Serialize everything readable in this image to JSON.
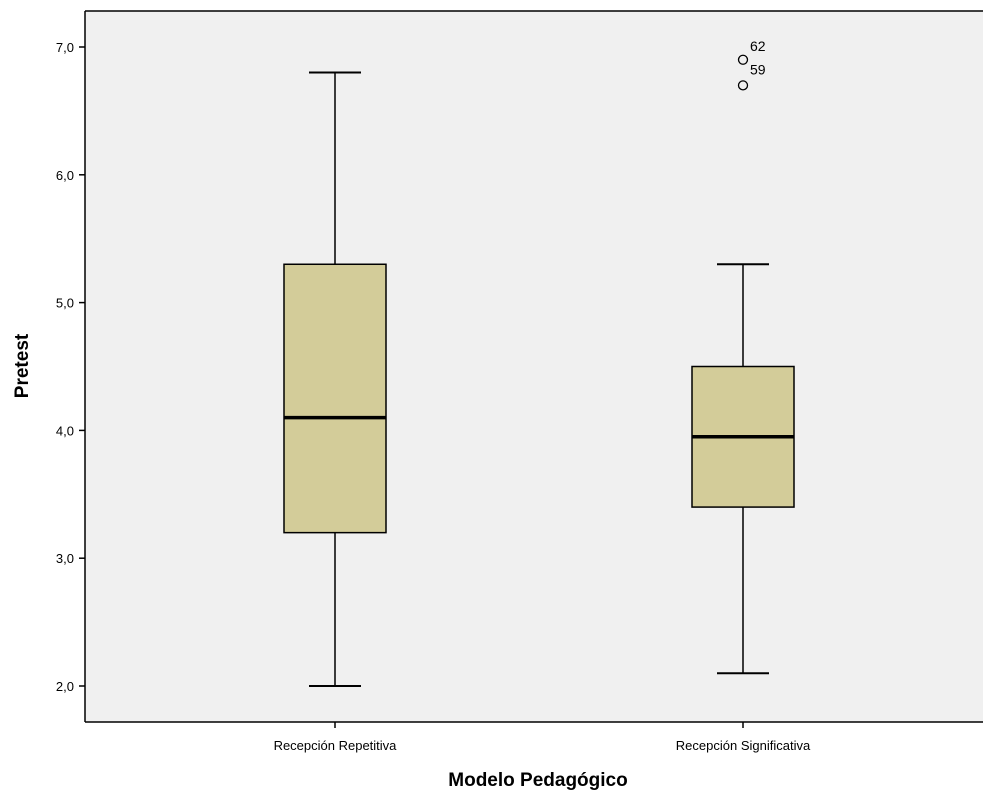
{
  "chart_data": {
    "type": "box",
    "xlabel": "Modelo Pedagógico",
    "ylabel": "Pretest",
    "ylim": [
      1.8,
      7.3
    ],
    "yticks": [
      2.0,
      3.0,
      4.0,
      5.0,
      6.0,
      7.0
    ],
    "ytick_labels": [
      "2,0",
      "3,0",
      "4,0",
      "5,0",
      "6,0",
      "7,0"
    ],
    "grid": false,
    "box_color": "#d3cc99",
    "plot_background": "#f0f0f0",
    "categories": [
      "Recepción Repetitiva",
      "Recepción Significativa"
    ],
    "boxes": [
      {
        "category": "Recepción Repetitiva",
        "whisker_low": 2.0,
        "q1": 3.2,
        "median": 4.1,
        "q3": 5.3,
        "whisker_high": 6.8,
        "outliers": []
      },
      {
        "category": "Recepción Significativa",
        "whisker_low": 2.1,
        "q1": 3.4,
        "median": 3.95,
        "q3": 4.5,
        "whisker_high": 5.3,
        "outliers": [
          {
            "value": 6.9,
            "label": "62"
          },
          {
            "value": 6.7,
            "label": "59"
          }
        ]
      }
    ]
  }
}
